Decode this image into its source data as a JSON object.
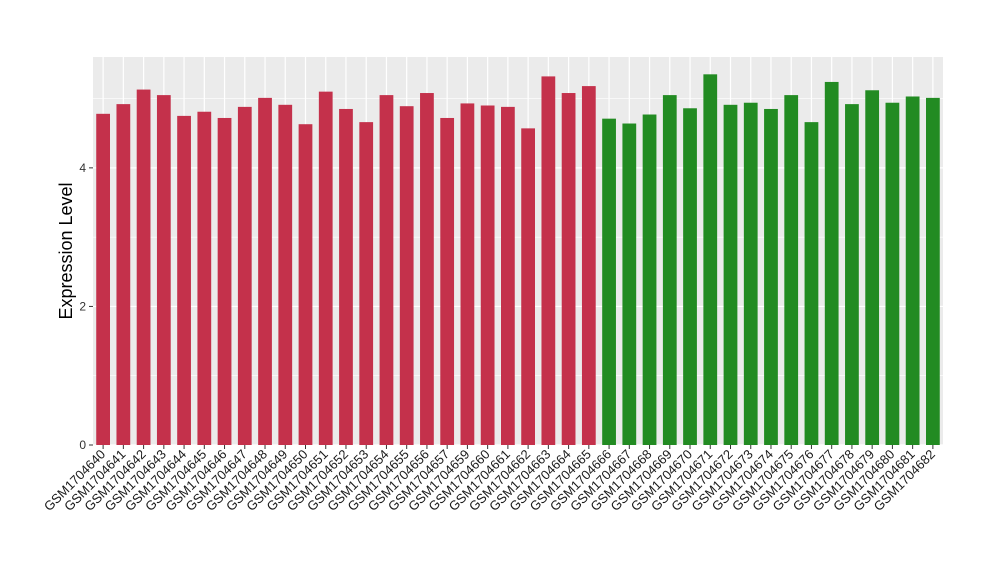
{
  "chart_data": {
    "type": "bar",
    "title": "",
    "xlabel": "",
    "ylabel": "Expression Level",
    "ylim": [
      0,
      5.6
    ],
    "yticks": [
      0,
      2,
      4
    ],
    "grid": true,
    "colors": {
      "panel": "#ebebeb",
      "grid": "#ffffff",
      "group_a": "#c4314b",
      "group_b": "#228b22"
    },
    "categories": [
      "GSM1704640",
      "GSM1704641",
      "GSM1704642",
      "GSM1704643",
      "GSM1704644",
      "GSM1704645",
      "GSM1704646",
      "GSM1704647",
      "GSM1704648",
      "GSM1704649",
      "GSM1704650",
      "GSM1704651",
      "GSM1704652",
      "GSM1704653",
      "GSM1704654",
      "GSM1704655",
      "GSM1704656",
      "GSM1704657",
      "GSM1704659",
      "GSM1704660",
      "GSM1704661",
      "GSM1704662",
      "GSM1704663",
      "GSM1704664",
      "GSM1704665",
      "GSM1704666",
      "GSM1704667",
      "GSM1704668",
      "GSM1704669",
      "GSM1704670",
      "GSM1704671",
      "GSM1704672",
      "GSM1704673",
      "GSM1704674",
      "GSM1704675",
      "GSM1704676",
      "GSM1704677",
      "GSM1704678",
      "GSM1704679",
      "GSM1704680",
      "GSM1704681",
      "GSM1704682"
    ],
    "values": [
      4.78,
      4.92,
      5.13,
      5.05,
      4.75,
      4.81,
      4.72,
      4.88,
      5.01,
      4.91,
      4.63,
      5.1,
      4.85,
      4.66,
      5.05,
      4.89,
      5.08,
      4.72,
      4.93,
      4.9,
      4.88,
      4.57,
      5.32,
      5.08,
      5.18,
      4.71,
      4.64,
      4.77,
      5.05,
      4.86,
      5.35,
      4.91,
      4.94,
      4.85,
      5.05,
      4.66,
      5.24,
      4.92,
      5.12,
      4.94,
      5.03,
      5.01
    ],
    "group": [
      "a",
      "a",
      "a",
      "a",
      "a",
      "a",
      "a",
      "a",
      "a",
      "a",
      "a",
      "a",
      "a",
      "a",
      "a",
      "a",
      "a",
      "a",
      "a",
      "a",
      "a",
      "a",
      "a",
      "a",
      "a",
      "b",
      "b",
      "b",
      "b",
      "b",
      "b",
      "b",
      "b",
      "b",
      "b",
      "b",
      "b",
      "b",
      "b",
      "b",
      "b",
      "b"
    ]
  }
}
